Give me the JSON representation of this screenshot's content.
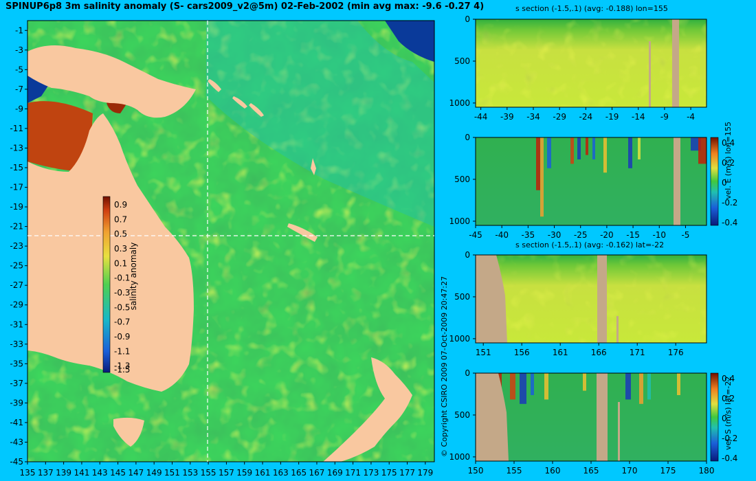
{
  "title": "SPINUP6p8 3m salinity anomaly (S- cars2009_v2@5m) 02-Feb-2002 (min avg max: -9.6 -0.27 4)",
  "copyright": "© Copyright CSIRO 2009    07-Oct-2009 20:47:27",
  "colors": {
    "background": "#00c8ff",
    "land": "#f9c8a0",
    "section_land": "#c4a888",
    "guide": "#ffffff"
  },
  "chart_data": [
    {
      "id": "map",
      "type": "heatmap",
      "title": "SPINUP6p8 3m salinity anomaly (S- cars2009_v2@5m) 02-Feb-2002 (min avg max: -9.6 -0.27 4)",
      "x_ticks": [
        "135",
        "137",
        "139",
        "141",
        "143",
        "145",
        "147",
        "149",
        "151",
        "153",
        "155",
        "157",
        "159",
        "161",
        "163",
        "165",
        "167",
        "169",
        "171",
        "173",
        "175",
        "177",
        "179"
      ],
      "y_ticks": [
        "-1",
        "-3",
        "-5",
        "-7",
        "-9",
        "-11",
        "-13",
        "-15",
        "-17",
        "-19",
        "-21",
        "-23",
        "-25",
        "-27",
        "-29",
        "-31",
        "-33",
        "-35",
        "-37",
        "-39",
        "-41",
        "-43",
        "-45"
      ],
      "xlim": [
        135,
        180
      ],
      "ylim": [
        -45,
        0
      ],
      "guides": {
        "lon": 155,
        "lat": -22
      },
      "colorbar": {
        "label": "salinity anomaly",
        "ticks": [
          "0.9",
          "0.7",
          "0.5",
          "0.3",
          "0.1",
          "-0.1",
          "-0.3",
          "-0.5",
          "-0.7",
          "-0.9",
          "-1.1",
          "-1.3",
          "-1.5"
        ],
        "range": [
          -1.5,
          0.9
        ]
      }
    },
    {
      "id": "s-section-lon",
      "type": "heatmap",
      "title": "s section (-1.5,.1) (avg: -0.188) lon=155",
      "x_ticks": [
        "-44",
        "-39",
        "-34",
        "-29",
        "-24",
        "-19",
        "-14",
        "-9",
        "-4"
      ],
      "y_ticks": [
        "0",
        "500",
        "1000"
      ]
    },
    {
      "id": "vel-e-section",
      "type": "heatmap",
      "title": "",
      "x_ticks": [
        "-45",
        "-40",
        "-35",
        "-30",
        "-25",
        "-20",
        "-15",
        "-10",
        "-5"
      ],
      "y_ticks": [
        "0",
        "500",
        "1000"
      ],
      "colorbar": {
        "label": "vel. E (m/s) lon=155",
        "ticks": [
          "0.4",
          "0.2",
          "0",
          "-0.2",
          "-0.4"
        ],
        "range": [
          -0.4,
          0.4
        ]
      }
    },
    {
      "id": "s-section-lat",
      "type": "heatmap",
      "title": "s section (-1.5,.1) (avg: -0.162) lat=-22",
      "x_ticks": [
        "151",
        "156",
        "161",
        "166",
        "171",
        "176"
      ],
      "y_ticks": [
        "0",
        "500",
        "1000"
      ]
    },
    {
      "id": "vel-s-section",
      "type": "heatmap",
      "title": "",
      "x_ticks": [
        "150",
        "155",
        "160",
        "165",
        "170",
        "175",
        "180"
      ],
      "y_ticks": [
        "0",
        "500",
        "1000"
      ],
      "colorbar": {
        "label": "vel. S (m/s) lat=-22",
        "ticks": [
          "0.4",
          "0.2",
          "0",
          "-0.2",
          "-0.4"
        ],
        "range": [
          -0.4,
          0.4
        ]
      }
    }
  ]
}
